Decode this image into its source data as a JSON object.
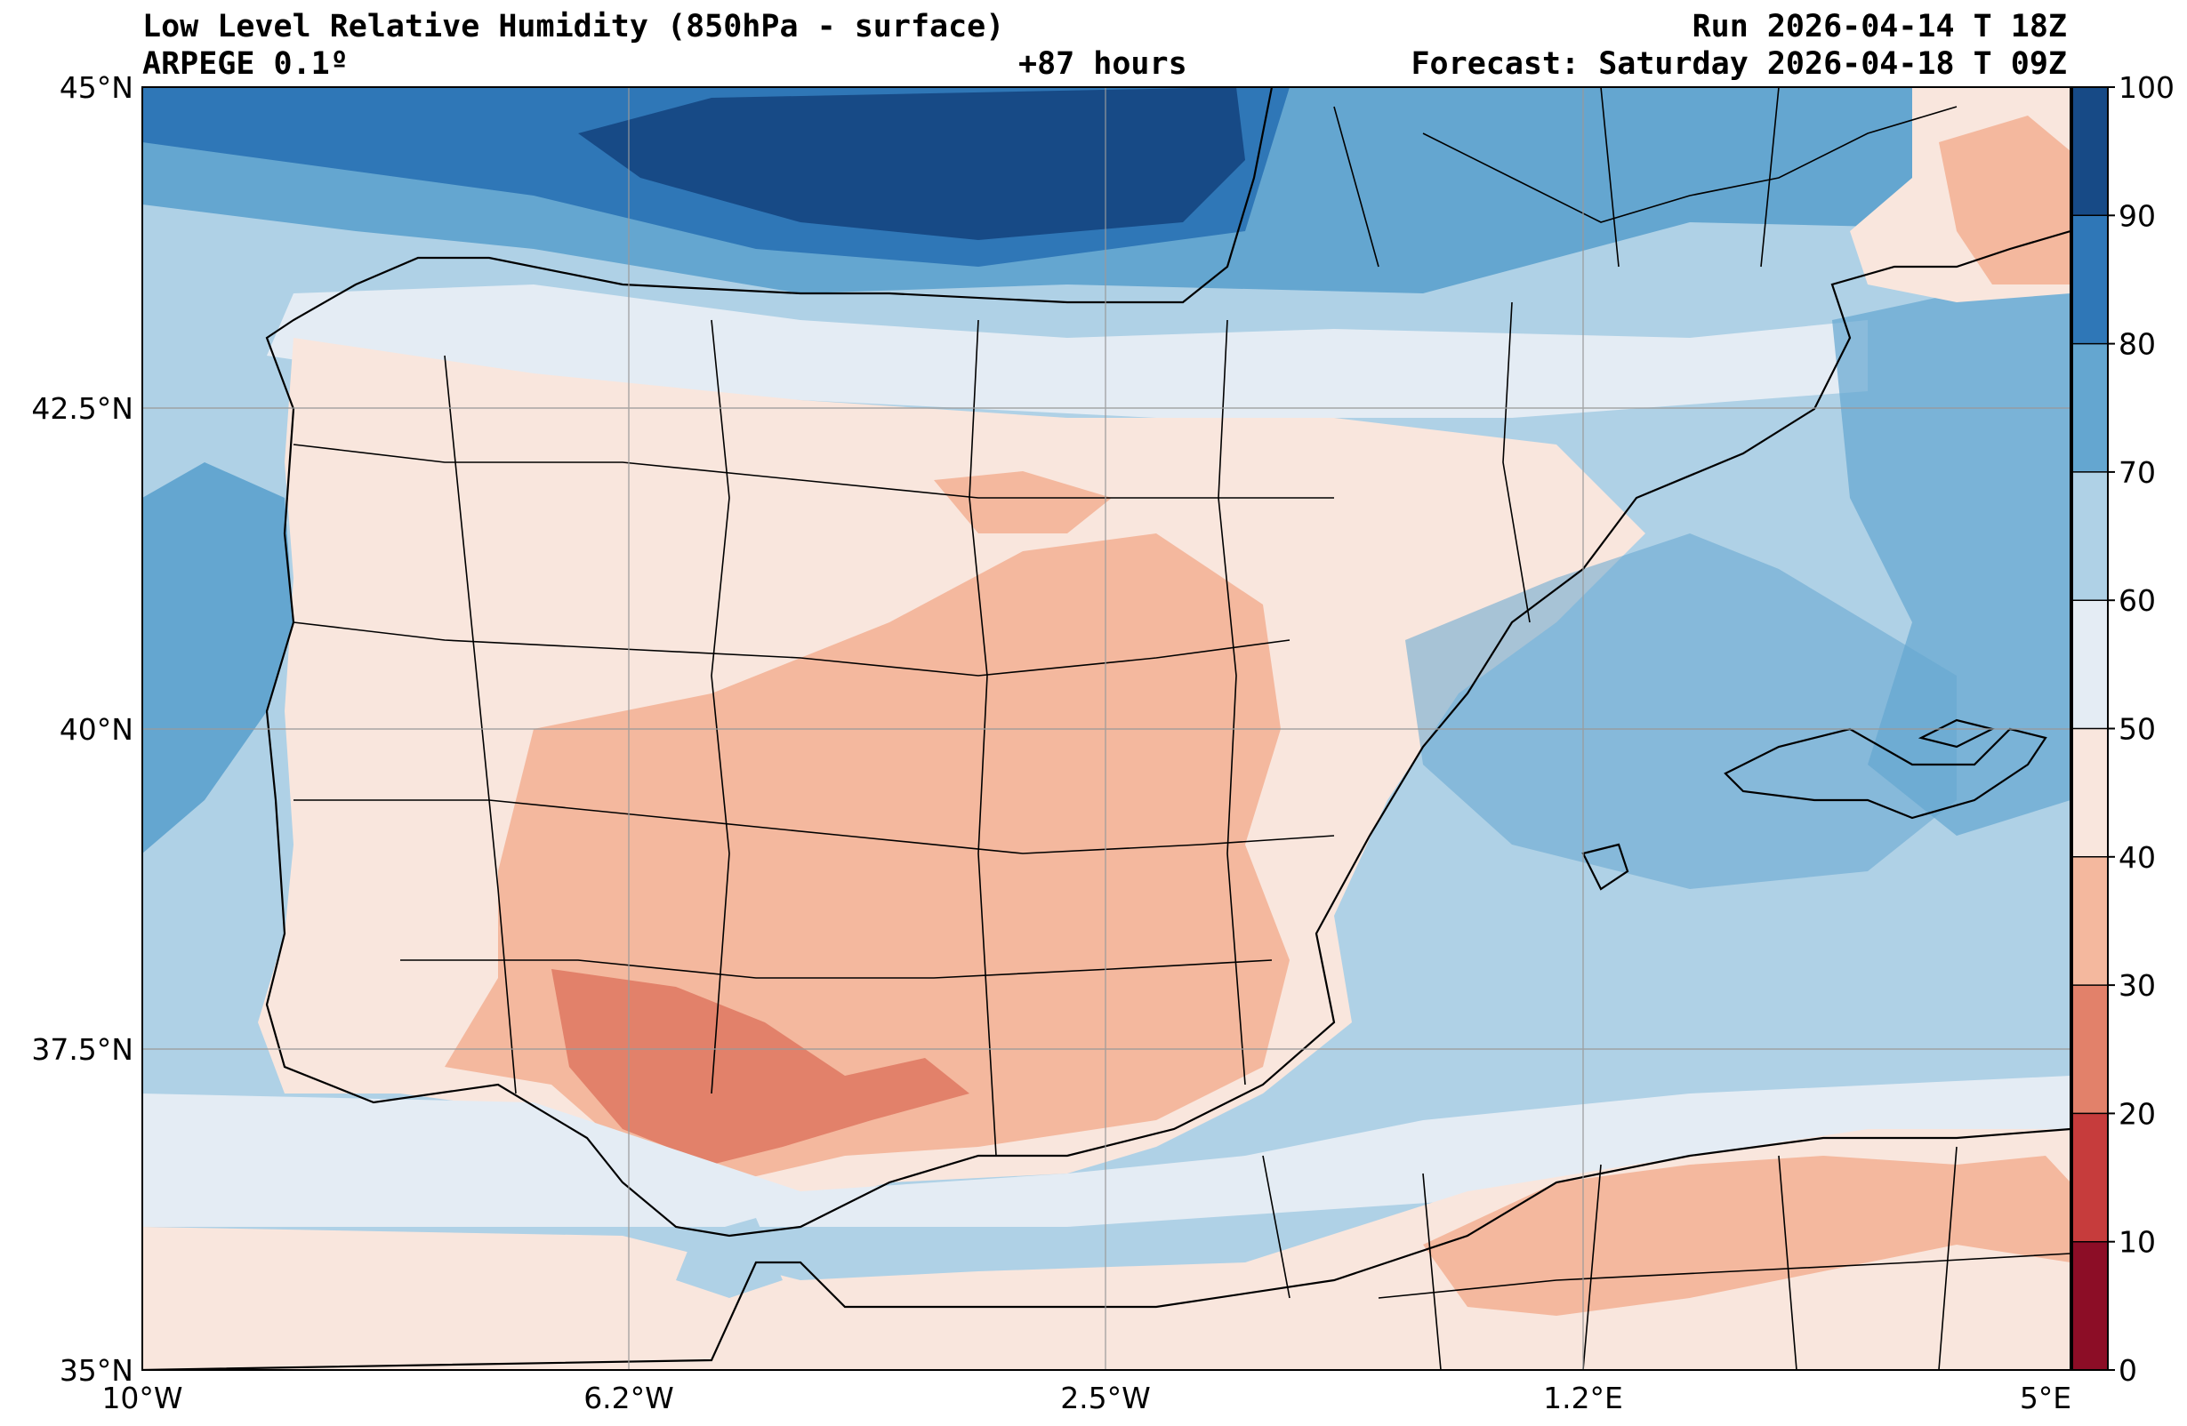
{
  "header": {
    "title": "Low Level Relative Humidity (850hPa - surface)",
    "model": "ARPEGE 0.1º",
    "lead_time": "+87 hours",
    "run": "Run 2026-04-14 T 18Z",
    "forecast": "Forecast: Saturday 2026-04-18 T 09Z"
  },
  "map": {
    "lat_labels": [
      "45°N",
      "42.5°N",
      "40°N",
      "37.5°N",
      "35°N"
    ],
    "lon_labels": [
      "10°W",
      "6.2°W",
      "2.5°W",
      "1.2°E",
      "5°E"
    ]
  },
  "colorbar": {
    "ticks": [
      "0",
      "10",
      "20",
      "30",
      "40",
      "50",
      "60",
      "70",
      "80",
      "90",
      "100"
    ],
    "colors": [
      "#67001f",
      "#b2182b",
      "#d6604d",
      "#f4a582",
      "#fddbc7",
      "#f2f2f2",
      "#d1e5f0",
      "#92c5de",
      "#4393c3",
      "#2166ac",
      "#053061"
    ]
  },
  "colors": {
    "rh_90_100": "#174a86",
    "rh_80_90": "#2f77b7",
    "rh_70_80": "#64a6d0",
    "rh_60_70": "#afd1e6",
    "rh_50_60": "#e4ecf4",
    "rh_40_50": "#f9e6dd",
    "rh_30_40": "#f4b89e",
    "rh_20_30": "#e2816a",
    "rh_10_20": "#c63c3c",
    "rh_0_10": "#8c0d26"
  }
}
